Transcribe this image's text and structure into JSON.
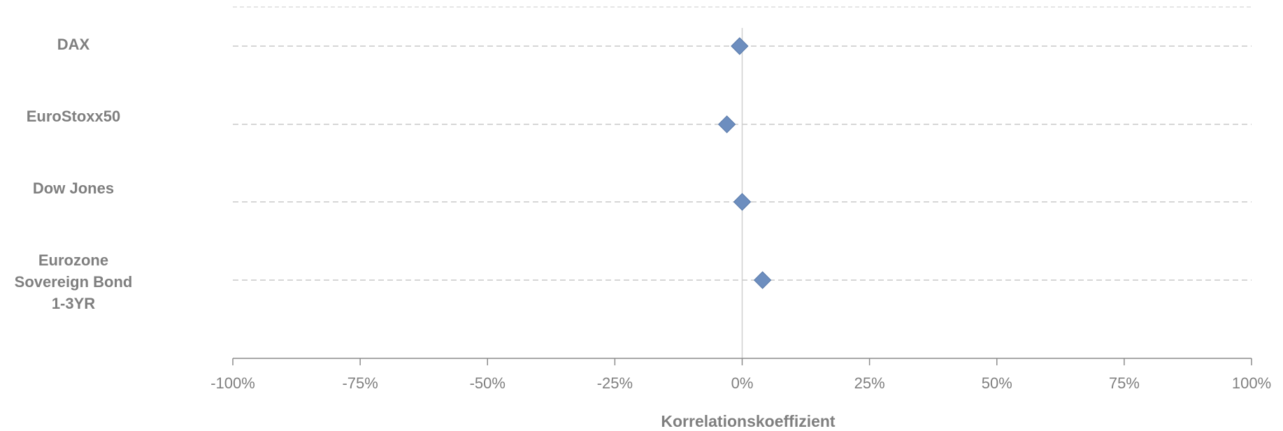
{
  "chart_data": {
    "type": "scatter",
    "categories": [
      "DAX",
      "EuroStoxx50",
      "Dow Jones",
      "Eurozone Sovereign Bond 1-3YR"
    ],
    "category_label_lines": [
      [
        "DAX"
      ],
      [
        "EuroStoxx50"
      ],
      [
        "Dow Jones"
      ],
      [
        "Eurozone",
        "Sovereign Bond",
        "1-3YR"
      ]
    ],
    "series": [
      {
        "values": [
          -0.5,
          -3,
          0,
          4
        ]
      }
    ],
    "xlabel": "Korrelationskoeffizient",
    "xlim": [
      -100,
      100
    ],
    "xticks": [
      -100,
      -75,
      -50,
      -25,
      0,
      25,
      50,
      75,
      100
    ],
    "xtick_labels": [
      "-100%",
      "-75%",
      "-50%",
      "-25%",
      "0%",
      "25%",
      "50%",
      "75%",
      "100%"
    ],
    "grid": true,
    "marker": "diamond",
    "colors": {
      "marker": "#6d8ebf",
      "marker_stroke": "#5a7bab",
      "grid": "#c8c8c8",
      "axis": "#8c8c8c",
      "text": "#7f7f7f"
    }
  }
}
